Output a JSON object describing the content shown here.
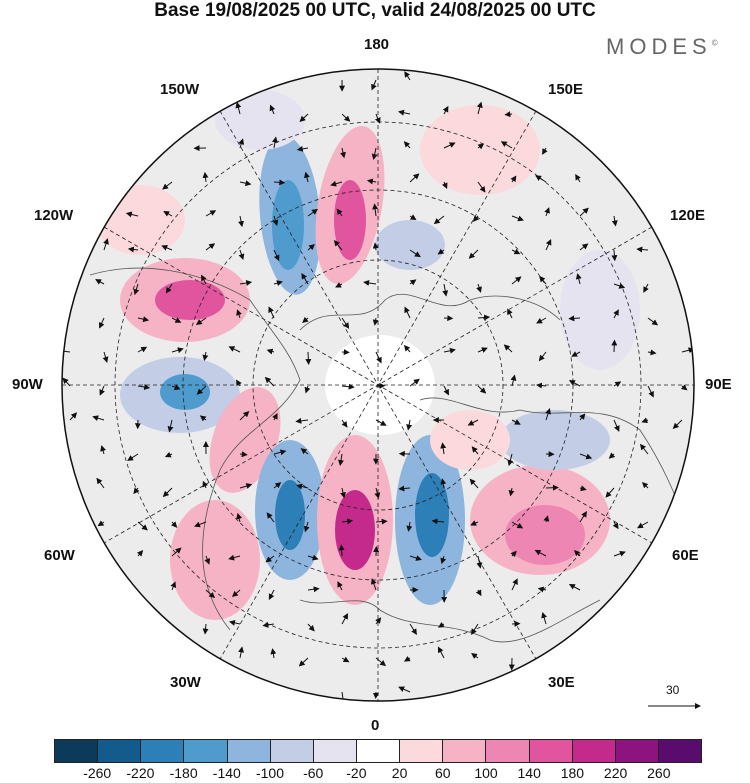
{
  "title": "Base 19/08/2025 00 UTC, valid 24/08/2025 00 UTC",
  "brand": "MODES",
  "brand_mark": "©",
  "longitude_labels": {
    "top": "180",
    "bottom": "0",
    "left": "90W",
    "right": "90E",
    "upper_left_1": "150W",
    "upper_left_2": "120W",
    "upper_right_1": "150E",
    "upper_right_2": "120E",
    "lower_left_1": "60W",
    "lower_left_2": "30W",
    "lower_right_1": "60E",
    "lower_right_2": "30E"
  },
  "vector_reference": "30",
  "colorbar": {
    "colors": [
      "#0b3a5a",
      "#135b8c",
      "#2d7fb8",
      "#4f9bce",
      "#8db5dd",
      "#c3cde6",
      "#e6e3f1",
      "#ffffff",
      "#fbd9dc",
      "#f6b3c5",
      "#ee86b3",
      "#e0559e",
      "#c42a8c",
      "#8d137f",
      "#5a0b6e"
    ],
    "tick_labels": [
      "-260",
      "-220",
      "-180",
      "-140",
      "-100",
      "-60",
      "-20",
      "20",
      "60",
      "100",
      "140",
      "180",
      "220",
      "260"
    ]
  }
}
